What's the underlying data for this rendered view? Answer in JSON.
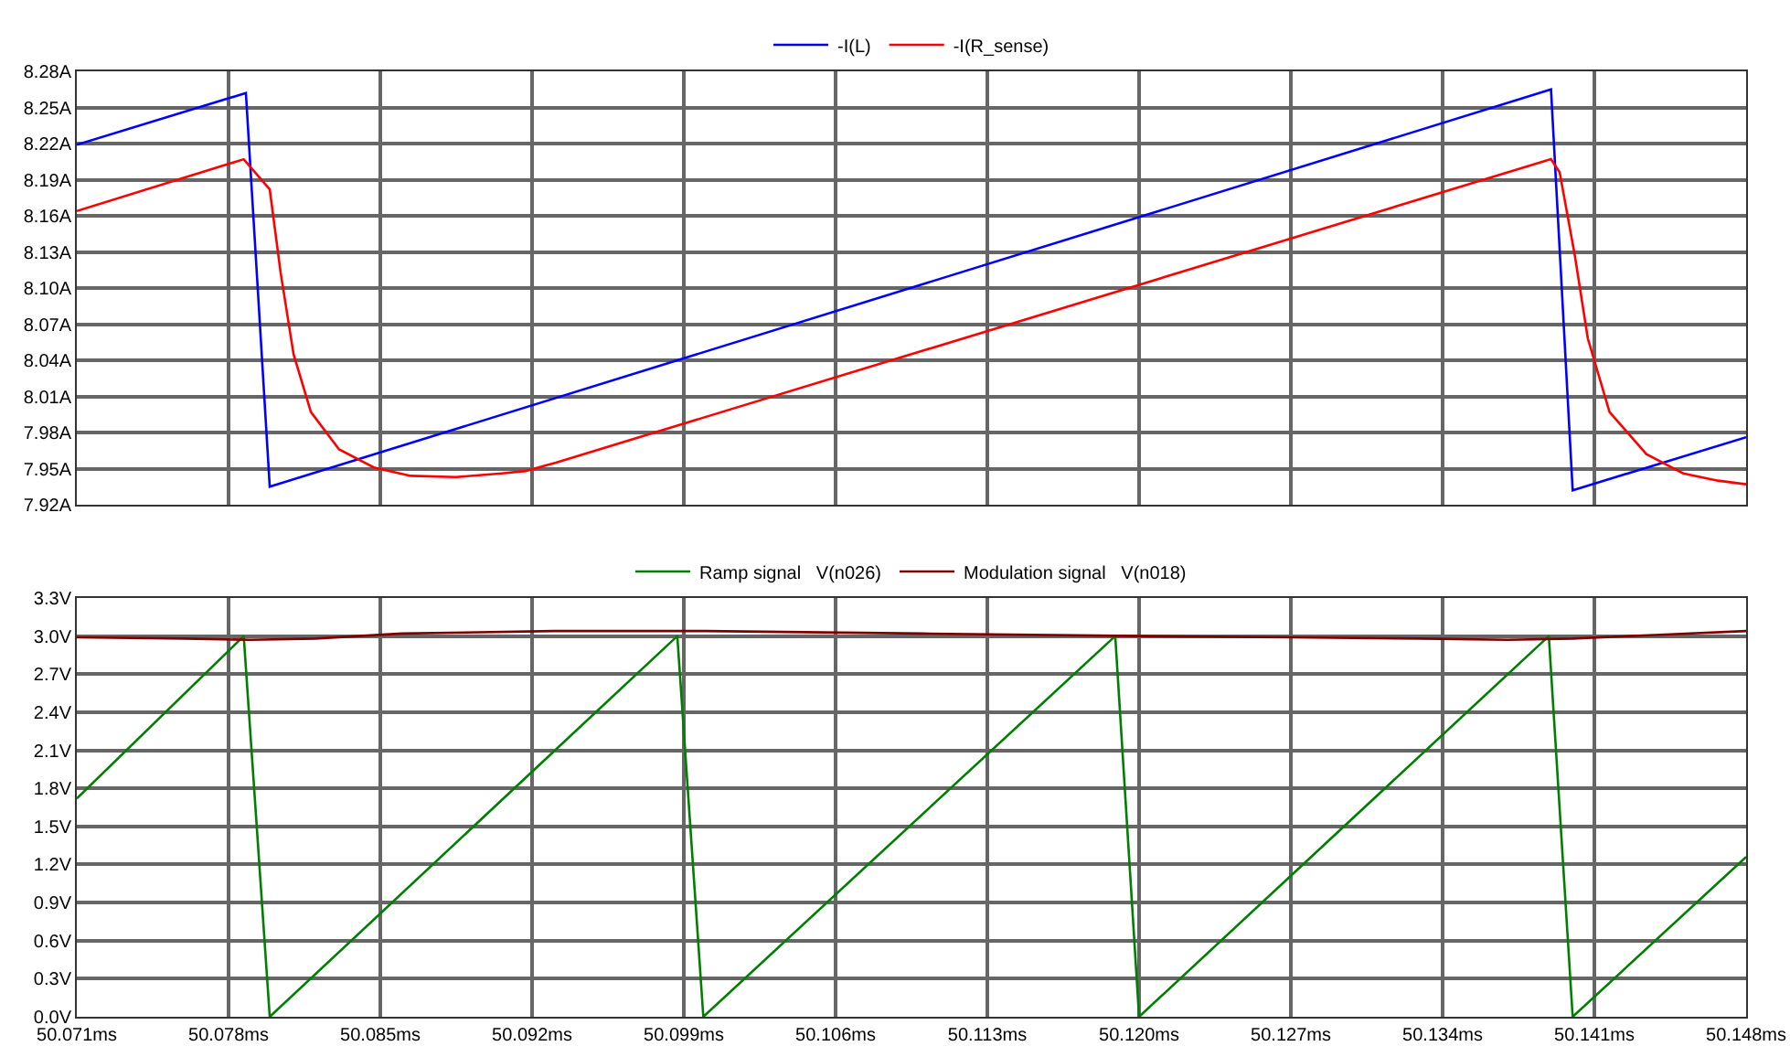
{
  "chart_data": [
    {
      "type": "line",
      "tick_labels": "y",
      "grid": true,
      "legend": "top",
      "line_style": "solid",
      "marker": "none",
      "xlim": [
        50.071,
        50.148
      ],
      "xticks": [
        50.071,
        50.078,
        50.085,
        50.092,
        50.099,
        50.106,
        50.113,
        50.12,
        50.127,
        50.134,
        50.141,
        50.148
      ],
      "ylim": [
        7.92,
        8.28
      ],
      "yticks": [
        {
          "value": 7.92,
          "label": "7.92A"
        },
        {
          "value": 7.95,
          "label": "7.95A"
        },
        {
          "value": 7.98,
          "label": "7.98A"
        },
        {
          "value": 8.01,
          "label": "8.01A"
        },
        {
          "value": 8.04,
          "label": "8.04A"
        },
        {
          "value": 8.07,
          "label": "8.07A"
        },
        {
          "value": 8.1,
          "label": "8.10A"
        },
        {
          "value": 8.13,
          "label": "8.13A"
        },
        {
          "value": 8.16,
          "label": "8.16A"
        },
        {
          "value": 8.19,
          "label": "8.19A"
        },
        {
          "value": 8.22,
          "label": "8.22A"
        },
        {
          "value": 8.25,
          "label": "8.25A"
        },
        {
          "value": 8.28,
          "label": "8.28A"
        }
      ],
      "series": [
        {
          "name": "-I(L)",
          "color": "#0000ff",
          "x": [
            50.071,
            50.0788,
            50.0799,
            50.139,
            50.14,
            50.148
          ],
          "values": [
            8.219,
            8.262,
            7.935,
            8.265,
            7.932,
            7.976
          ]
        },
        {
          "name": "-I(R_sense)",
          "color": "#ff0000",
          "x": [
            50.071,
            50.0787,
            50.0799,
            50.0804,
            50.081,
            50.0818,
            50.0831,
            50.0847,
            50.0864,
            50.0885,
            50.0906,
            50.0917,
            50.0931,
            50.139,
            50.1394,
            50.1401,
            50.1407,
            50.1417,
            50.1434,
            50.1451,
            50.1467,
            50.148
          ],
          "values": [
            8.164,
            8.207,
            8.182,
            8.113,
            8.045,
            7.997,
            7.966,
            7.951,
            7.944,
            7.943,
            7.946,
            7.948,
            7.955,
            8.207,
            8.196,
            8.127,
            8.058,
            7.997,
            7.962,
            7.946,
            7.94,
            7.937
          ]
        }
      ]
    },
    {
      "type": "line",
      "grid": true,
      "legend": "top",
      "line_style": "solid",
      "marker": "none",
      "xlim": [
        50.071,
        50.148
      ],
      "xticks": [
        {
          "value": 50.071,
          "label": "50.071ms"
        },
        {
          "value": 50.078,
          "label": "50.078ms"
        },
        {
          "value": 50.085,
          "label": "50.085ms"
        },
        {
          "value": 50.092,
          "label": "50.092ms"
        },
        {
          "value": 50.099,
          "label": "50.099ms"
        },
        {
          "value": 50.106,
          "label": "50.106ms"
        },
        {
          "value": 50.113,
          "label": "50.113ms"
        },
        {
          "value": 50.12,
          "label": "50.120ms"
        },
        {
          "value": 50.127,
          "label": "50.127ms"
        },
        {
          "value": 50.134,
          "label": "50.134ms"
        },
        {
          "value": 50.141,
          "label": "50.141ms"
        },
        {
          "value": 50.148,
          "label": "50.148ms"
        }
      ],
      "ylim": [
        0,
        3.3
      ],
      "yticks": [
        {
          "value": 0,
          "label": "0.0V"
        },
        {
          "value": 0.3,
          "label": "0.3V"
        },
        {
          "value": 0.6,
          "label": "0.6V"
        },
        {
          "value": 0.9,
          "label": "0.9V"
        },
        {
          "value": 1.2,
          "label": "1.2V"
        },
        {
          "value": 1.5,
          "label": "1.5V"
        },
        {
          "value": 1.8,
          "label": "1.8V"
        },
        {
          "value": 2.1,
          "label": "2.1V"
        },
        {
          "value": 2.4,
          "label": "2.4V"
        },
        {
          "value": 2.7,
          "label": "2.7V"
        },
        {
          "value": 3.0,
          "label": "3.0V"
        },
        {
          "value": 3.3,
          "label": "3.3V"
        }
      ],
      "series": [
        {
          "name": "Ramp signal   V(n026)",
          "color": "#008000",
          "x": [
            50.071,
            50.0787,
            50.0799,
            50.0987,
            50.0999,
            50.1189,
            50.12,
            50.1389,
            50.14,
            50.148
          ],
          "values": [
            1.72,
            3.0,
            0,
            3.0,
            0,
            3.0,
            0,
            3.0,
            0,
            1.26
          ]
        },
        {
          "name": "Modulation signal   V(n018)",
          "color": "#800000",
          "x": [
            50.071,
            50.076,
            50.079,
            50.082,
            50.086,
            50.093,
            50.1,
            50.11,
            50.12,
            50.127,
            50.133,
            50.137,
            50.14,
            50.144,
            50.148
          ],
          "values": [
            2.99,
            2.98,
            2.97,
            2.98,
            3.02,
            3.04,
            3.04,
            3.02,
            3.0,
            2.99,
            2.98,
            2.97,
            2.98,
            3.01,
            3.04
          ]
        }
      ]
    }
  ]
}
